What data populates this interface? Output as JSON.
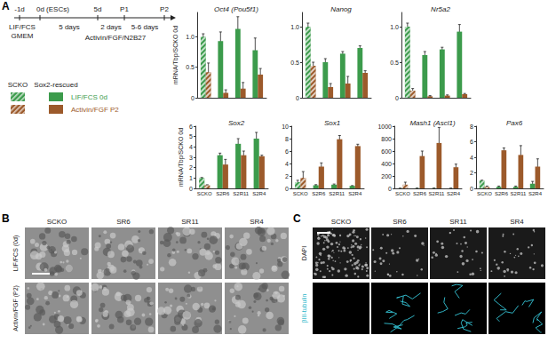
{
  "panels": [
    "A",
    "B",
    "C"
  ],
  "timeline": {
    "points": [
      "-1d",
      "0d (ESCs)",
      "5d",
      "P1",
      "P2"
    ],
    "start_labels": [
      "LIF/FCS",
      "GMEM"
    ],
    "intervals": [
      "5 days",
      "2 days",
      "5-6 days"
    ],
    "medium": "Activin/FGF/N2B27"
  },
  "key": {
    "groups": [
      {
        "label": "SCKO",
        "fill": "hatched"
      },
      {
        "label": "Sox2-rescued",
        "fill": "solid"
      }
    ]
  },
  "chart_data": [
    {
      "type": "bar",
      "title": "Oct4 (Pou5f1)",
      "ylabel": "mRNA/Tbp/SCKO 0d",
      "categories": [
        "SCKO",
        "S2R6",
        "S2R11",
        "S2R4"
      ],
      "series": [
        {
          "name": "LIF/FCS 0d",
          "color": "#3c9b4c",
          "values": [
            1.0,
            0.93,
            1.13,
            0.78
          ],
          "errors": [
            0.05,
            0.15,
            0.2,
            0.2
          ]
        },
        {
          "name": "Activin/FGF P2",
          "color": "#9c5a2b",
          "values": [
            0.42,
            0.08,
            0.15,
            0.38
          ],
          "errors": [
            0.15,
            0.05,
            0.1,
            0.1
          ]
        }
      ],
      "ylim": [
        0,
        1.4
      ],
      "yticks": [
        0,
        0.5,
        {
          "value": 1,
          "label": "1.0"
        }
      ],
      "grid": false,
      "tick_labels": "y"
    },
    {
      "type": "bar",
      "title": "Nanog",
      "categories": [
        "SCKO",
        "S2R6",
        "S2R11",
        "S2R4"
      ],
      "series": [
        {
          "name": "LIF/FCS 0d",
          "color": "#3c9b4c",
          "values": [
            1.0,
            0.5,
            0.62,
            0.7
          ],
          "errors": [
            0.05,
            0.05,
            0.03,
            0.03
          ]
        },
        {
          "name": "Activin/FGF P2",
          "color": "#9c5a2b",
          "values": [
            0.45,
            0.15,
            0.2,
            0.35
          ],
          "errors": [
            0.05,
            0.05,
            0.1,
            0.03
          ]
        }
      ],
      "ylim": [
        0,
        1.2
      ],
      "yticks": [
        0,
        0.5,
        {
          "value": 1,
          "label": "1.0"
        }
      ],
      "grid": false,
      "tick_labels": "y"
    },
    {
      "type": "bar",
      "title": "Nr5a2",
      "categories": [
        "SCKO",
        "S2R6",
        "S2R11",
        "S2R4"
      ],
      "series": [
        {
          "name": "LIF/FCS 0d",
          "color": "#3c9b4c",
          "values": [
            1.0,
            0.6,
            0.68,
            0.93
          ],
          "errors": [
            0.05,
            0.05,
            0.03,
            0.1
          ]
        },
        {
          "name": "Activin/FGF P2",
          "color": "#9c5a2b",
          "values": [
            0.1,
            0.02,
            0.03,
            0.05
          ],
          "errors": [
            0.03,
            0.01,
            0.01,
            0.01
          ]
        }
      ],
      "ylim": [
        0,
        1.2
      ],
      "yticks": [
        0,
        0.5,
        {
          "value": 1,
          "label": "1.0"
        }
      ],
      "grid": false,
      "tick_labels": "y"
    },
    {
      "type": "bar",
      "title": "Sox2",
      "ylabel": "mRNA/Tbp/SCKO 0d",
      "categories": [
        "SCKO",
        "S2R6",
        "S2R11",
        "S2R4"
      ],
      "series": [
        {
          "name": "LIF/FCS 0d",
          "color": "#3c9b4c",
          "values": [
            1.0,
            3.2,
            4.3,
            4.8
          ],
          "errors": [
            0.05,
            0.2,
            0.5,
            0.6
          ]
        },
        {
          "name": "Activin/FGF P2",
          "color": "#9c5a2b",
          "values": [
            0.3,
            2.3,
            3.2,
            3.1
          ],
          "errors": [
            0.05,
            0.5,
            0.4,
            0.1
          ]
        }
      ],
      "ylim": [
        0,
        6
      ],
      "yticks": [
        0,
        1,
        2,
        3,
        4,
        5,
        6
      ],
      "grid": false
    },
    {
      "type": "bar",
      "title": "Sox1",
      "categories": [
        "SCKO",
        "S2R6",
        "S2R11",
        "S2R4"
      ],
      "series": [
        {
          "name": "LIF/FCS 0d",
          "color": "#3c9b4c",
          "values": [
            1.0,
            0.5,
            0.6,
            0.4
          ],
          "errors": [
            0.3,
            0.1,
            0.1,
            0.05
          ]
        },
        {
          "name": "Activin/FGF P2",
          "color": "#9c5a2b",
          "values": [
            1.7,
            3.5,
            7.9,
            6.8
          ],
          "errors": [
            1.0,
            0.6,
            0.6,
            0.3
          ]
        }
      ],
      "ylim": [
        0,
        10
      ],
      "yticks": [
        0,
        2,
        4,
        6,
        8,
        10
      ],
      "grid": false
    },
    {
      "type": "bar",
      "title": "Mash1 (Ascl1)",
      "categories": [
        "SCKO",
        "S2R6",
        "S2R11",
        "S2R4"
      ],
      "series": [
        {
          "name": "LIF/FCS 0d",
          "color": "#3c9b4c",
          "values": [
            1,
            2,
            2,
            1
          ],
          "errors": [
            0,
            0,
            0,
            0
          ]
        },
        {
          "name": "Activin/FGF P2",
          "color": "#9c5a2b",
          "values": [
            60,
            520,
            730,
            340
          ],
          "errors": [
            40,
            80,
            250,
            50
          ]
        }
      ],
      "ylim": [
        0,
        1000
      ],
      "yticks": [
        0,
        200,
        400,
        600,
        800,
        1000
      ],
      "grid": false
    },
    {
      "type": "bar",
      "title": "Pax6",
      "categories": [
        "SCKO",
        "S2R6",
        "S2R11",
        "S2R4"
      ],
      "series": [
        {
          "name": "LIF/FCS 0d",
          "color": "#3c9b4c",
          "values": [
            1.0,
            0.2,
            0.2,
            0.6
          ],
          "errors": [
            0.05,
            0.1,
            0.1,
            0.3
          ]
        },
        {
          "name": "Activin/FGF P2",
          "color": "#9c5a2b",
          "values": [
            0.2,
            4.9,
            4.3,
            2.8
          ],
          "errors": [
            0.1,
            0.3,
            1.2,
            1.0
          ]
        }
      ],
      "ylim": [
        0,
        8
      ],
      "yticks": [
        0,
        2,
        4,
        6,
        8
      ],
      "grid": false
    }
  ],
  "images_b": {
    "columns": [
      "SCKO",
      "SR6",
      "SR11",
      "SR4"
    ],
    "rows": [
      "LIF/FCS (0d)",
      "Activin/FGF (P2)"
    ]
  },
  "images_c": {
    "columns": [
      "SCKO",
      "SR6",
      "SR11",
      "SR4"
    ],
    "rows": [
      "DAPI",
      "βIII-tubulin"
    ]
  }
}
